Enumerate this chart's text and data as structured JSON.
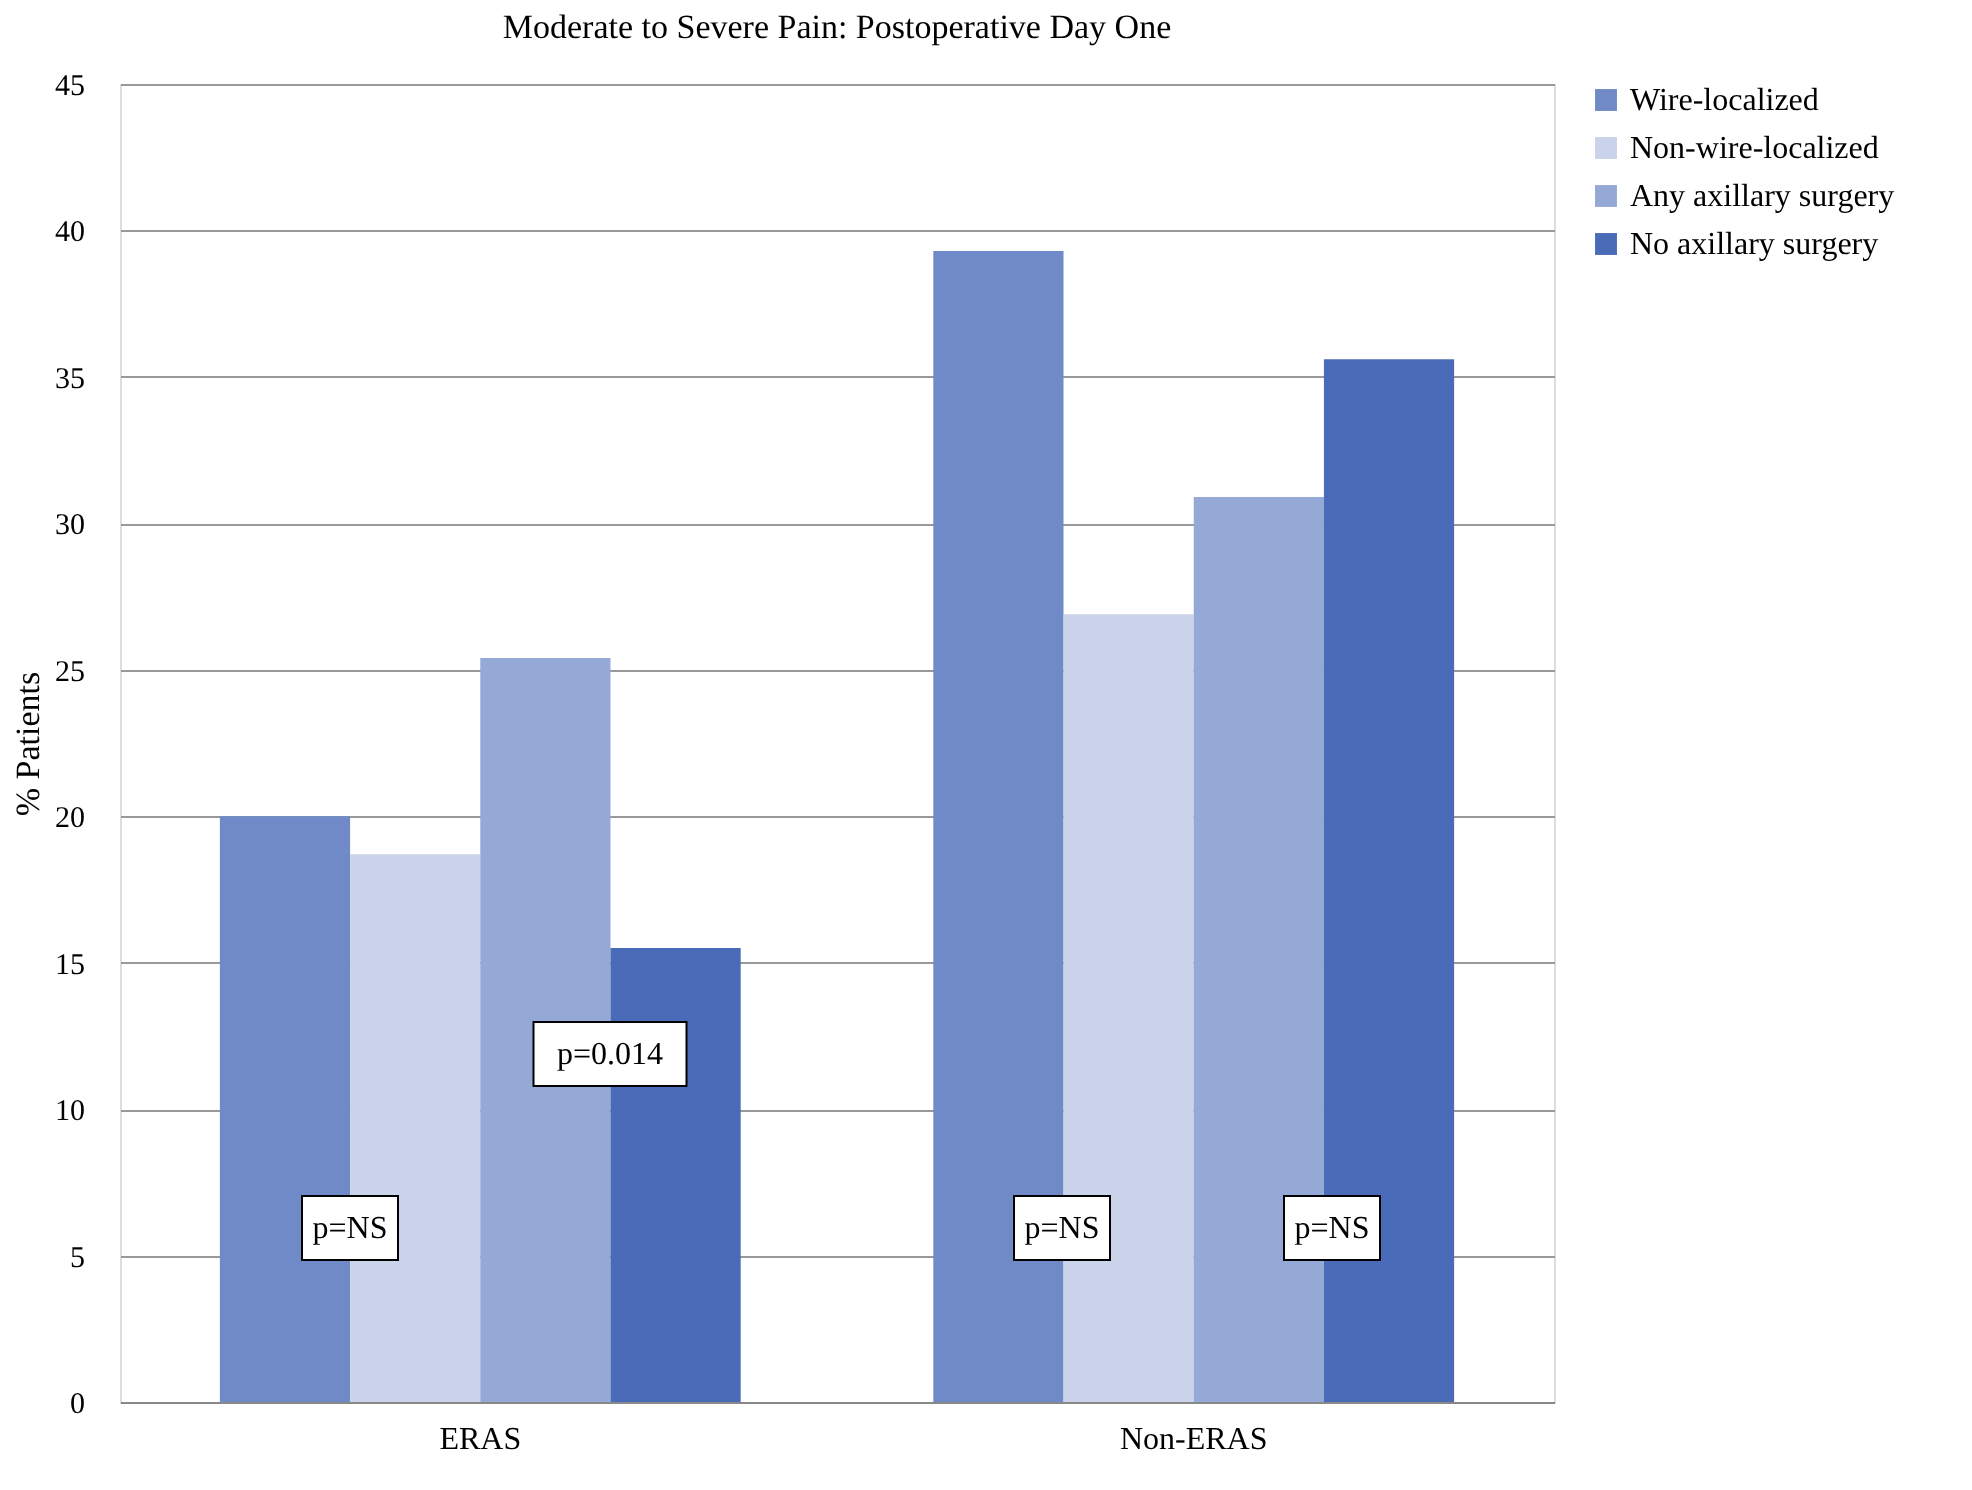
{
  "chart_data": {
    "type": "bar",
    "title": "Moderate to Severe Pain: Postoperative Day One",
    "ylabel": "% Patients",
    "categories": [
      "ERAS",
      "Non-ERAS"
    ],
    "series": [
      {
        "name": "Wire-localized",
        "color": "#6f8ac6",
        "values": [
          20.0,
          39.3
        ]
      },
      {
        "name": "Non-wire-localized",
        "color": "#cbd3ea",
        "values": [
          18.7,
          26.9
        ]
      },
      {
        "name": "Any axillary surgery",
        "color": "#95a9d6",
        "values": [
          25.4,
          30.9
        ]
      },
      {
        "name": "No axillary surgery",
        "color": "#4a6bb7",
        "values": [
          15.5,
          35.6
        ]
      }
    ],
    "ylim": [
      0,
      45
    ],
    "yticks": [
      0,
      5,
      10,
      15,
      20,
      25,
      30,
      35,
      40,
      45
    ],
    "grid": "y",
    "legend": "right",
    "annotations": [
      "p=NS",
      "p=0.014",
      "p=NS",
      "p=NS"
    ]
  }
}
